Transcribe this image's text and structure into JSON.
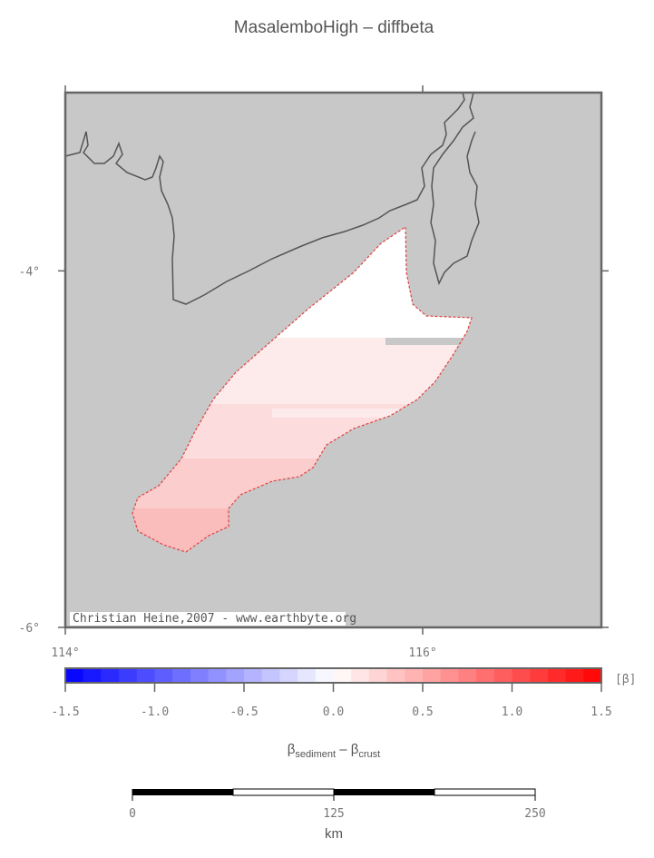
{
  "title": "MasalemboHigh – diffbeta",
  "map": {
    "lonlim": [
      114,
      117
    ],
    "latlim": [
      -6,
      -3
    ],
    "lat_ticks": [
      {
        "value": -4,
        "label": "-4°"
      },
      {
        "value": -6,
        "label": "-6°"
      }
    ],
    "lon_ticks": [
      {
        "value": 114,
        "label": "114°"
      },
      {
        "value": 116,
        "label": "116°"
      }
    ],
    "credit": "Christian Heine,2007 - www.earthbyte.org"
  },
  "colorbar": {
    "ticks": [
      -1.5,
      {
        "value": -1,
        "label": "-1.0"
      },
      -0.5,
      {
        "value": 0,
        "label": "0.0"
      },
      0.5,
      {
        "value": 1,
        "label": "1.0"
      },
      1.5
    ],
    "unit": "[β]",
    "label": {
      "symbol": "β",
      "sub_a": "sediment",
      "sep": "–",
      "sub_b": "crust"
    }
  },
  "scalebar": {
    "ticks": [
      0,
      125,
      250
    ],
    "unit": "km"
  }
}
